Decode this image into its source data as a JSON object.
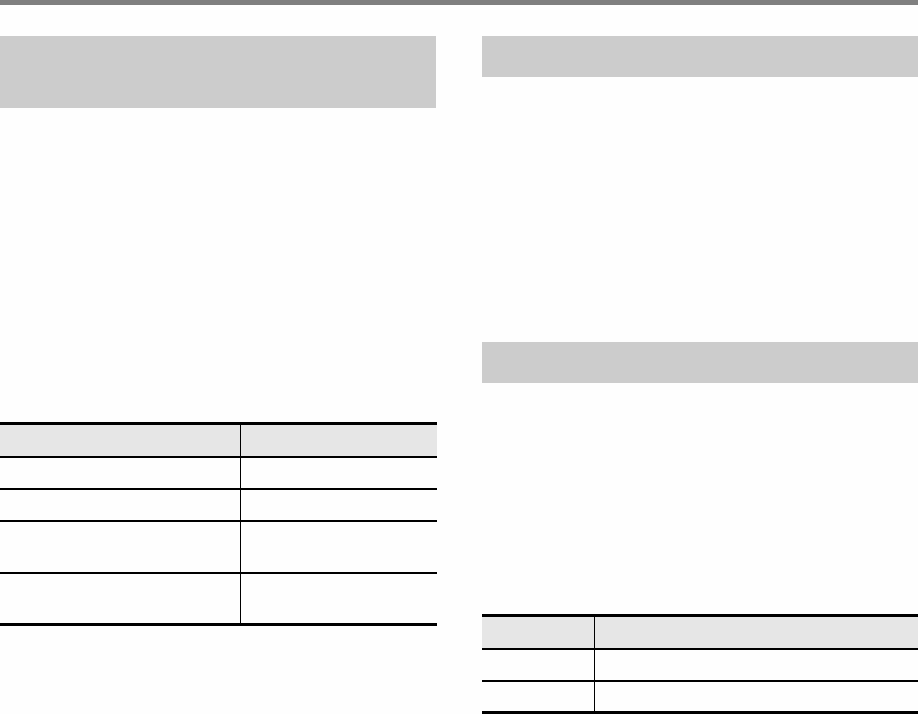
{
  "colors": {
    "top_bar": "#808080",
    "section_header": "#cccccc",
    "table_header": "#e6e6e6",
    "rule": "#000000"
  },
  "left": {
    "section_header": "",
    "table": {
      "headers": [
        "",
        ""
      ],
      "rows": [
        [
          "",
          ""
        ],
        [
          "",
          ""
        ],
        [
          "",
          ""
        ],
        [
          "",
          ""
        ]
      ]
    }
  },
  "right": {
    "section_header_1": "",
    "section_header_2": "",
    "table": {
      "headers": [
        "",
        ""
      ],
      "rows": [
        [
          "",
          ""
        ],
        [
          "",
          ""
        ]
      ]
    }
  }
}
